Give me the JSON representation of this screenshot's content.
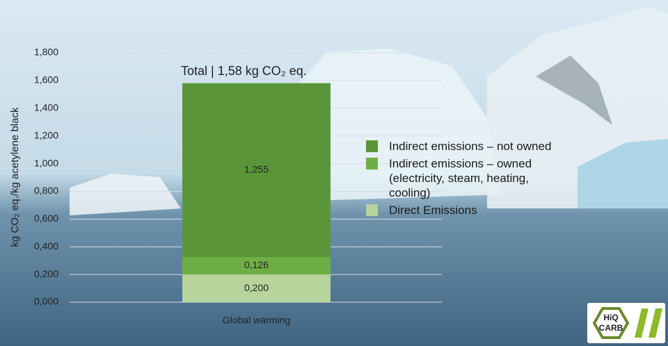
{
  "chart_data": {
    "type": "stacked_bar",
    "title": "Total | 1,58 kg CO₂ eq.",
    "y_label": "kg CO₂ eq./kg acetylene black",
    "categories": [
      "Global warming"
    ],
    "series": [
      {
        "name": "Direct Emissions",
        "color": "#b6d49c",
        "values": [
          0.2
        ],
        "value_labels": [
          "0,200"
        ]
      },
      {
        "name": "Indirect emissions – owned (electricity, steam, heating, cooling)",
        "color": "#6fae45",
        "values": [
          0.126
        ],
        "value_labels": [
          "0,126"
        ]
      },
      {
        "name": "Indirect emissions – not owned",
        "color": "#5a9639",
        "values": [
          1.255
        ],
        "value_labels": [
          "1,255"
        ]
      }
    ],
    "ylim": [
      0,
      1.8
    ],
    "yticks": [
      {
        "value": 0,
        "label": "0,000"
      },
      {
        "value": 0.2,
        "label": "0,200"
      },
      {
        "value": 0.4,
        "label": "0,400"
      },
      {
        "value": 0.6,
        "label": "0,600"
      },
      {
        "value": 0.8,
        "label": "0,800"
      },
      {
        "value": 1,
        "label": "1,000"
      },
      {
        "value": 1.2,
        "label": "1,200"
      },
      {
        "value": 1.4,
        "label": "1,400"
      },
      {
        "value": 1.6,
        "label": "1,600"
      },
      {
        "value": 1.8,
        "label": "1,800"
      }
    ],
    "grid": true
  },
  "logo": {
    "line1": "HiQ",
    "line2": "CARB"
  }
}
